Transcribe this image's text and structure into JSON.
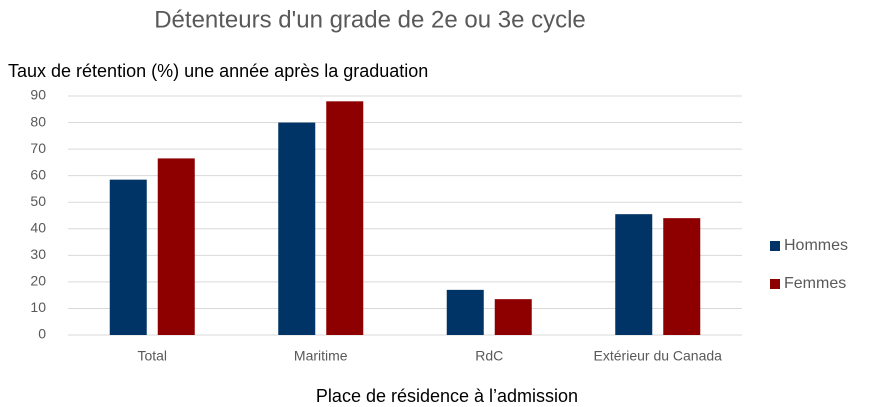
{
  "chart_data": {
    "type": "bar",
    "title": "Détenteurs d'un grade de 2e ou 3e  cycle",
    "y_label": "Taux de rétention (%) une année après la graduation",
    "x_label": "Place de résidence à l’admission",
    "categories": [
      "Total",
      "Maritime",
      "RdC",
      "Extérieur du Canada"
    ],
    "series": [
      {
        "name": "Hommes",
        "color": "#003466",
        "values": [
          58.5,
          80,
          17,
          45.5
        ]
      },
      {
        "name": "Femmes",
        "color": "#8e0000",
        "values": [
          66.5,
          88,
          13.5,
          44
        ]
      }
    ],
    "ylim": [
      0,
      90
    ],
    "yticks": [
      0,
      10,
      20,
      30,
      40,
      50,
      60,
      70,
      80,
      90
    ],
    "grid": true,
    "legend": "right"
  }
}
